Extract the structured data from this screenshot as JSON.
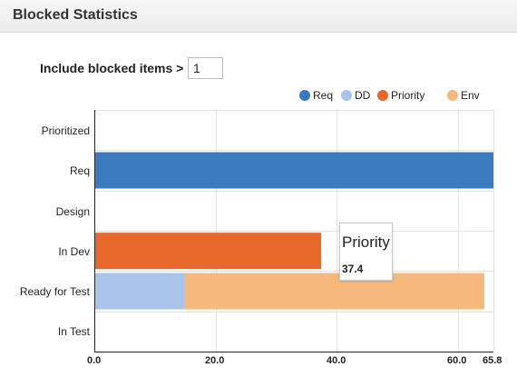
{
  "panel": {
    "title": "Blocked Statistics"
  },
  "filter": {
    "label": "Include blocked items >",
    "value": "1"
  },
  "legend": [
    {
      "name": "Req",
      "color": "#3a7bbf",
      "icon": "circle"
    },
    {
      "name": "DD",
      "color": "#a9c3ea",
      "icon": "circle"
    },
    {
      "name": "Priority",
      "color": "#e8672a",
      "icon": "circle"
    },
    {
      "name": "Env",
      "color": "#f6b97b",
      "icon": "circle"
    }
  ],
  "tooltip": {
    "title": "Priority",
    "value": "37.4"
  },
  "chart_data": {
    "type": "bar",
    "orientation": "horizontal",
    "stacked": true,
    "categories": [
      "Prioritized",
      "Req",
      "Design",
      "In Dev",
      "Ready for Test",
      "In Test"
    ],
    "series": [
      {
        "name": "Req",
        "color": "#3a7bbf",
        "values": [
          0,
          65.8,
          0,
          0,
          0,
          0
        ]
      },
      {
        "name": "DD",
        "color": "#a9c3ea",
        "values": [
          0,
          0,
          0,
          0,
          14.8,
          0
        ]
      },
      {
        "name": "Priority",
        "color": "#e8672a",
        "values": [
          0,
          0,
          0,
          37.4,
          0,
          0
        ]
      },
      {
        "name": "Env",
        "color": "#f6b97b",
        "values": [
          0,
          0,
          0,
          0,
          49.5,
          0
        ]
      }
    ],
    "xlim": [
      0,
      65.8
    ],
    "xticks": [
      0,
      20,
      40,
      60,
      65.8
    ],
    "xtick_labels": [
      "0.0",
      "20.0",
      "40.0",
      "60.0",
      "65.8"
    ],
    "grid": true,
    "legend_position": "top-right"
  }
}
